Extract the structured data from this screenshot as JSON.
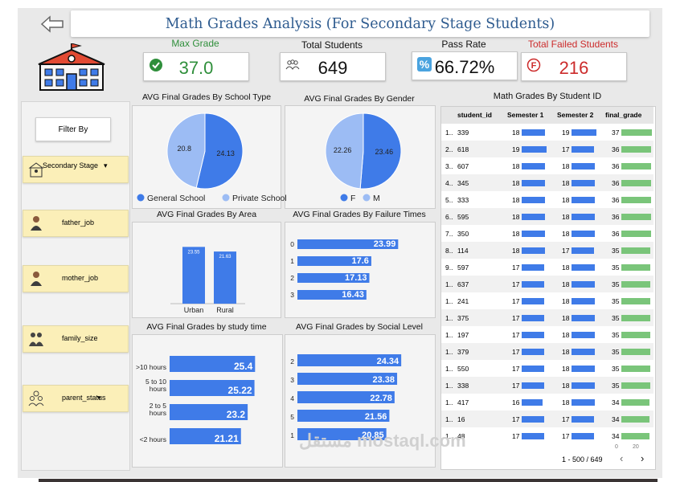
{
  "title": "Math Grades Analysis (For Secondary Stage Students)",
  "colors": {
    "accent": "#3f7be8",
    "light": "#9cbcf4",
    "green": "#2f8f3b",
    "red": "#cc2b2b",
    "filter": "#fbefb8",
    "bar_final": "#7ac57a"
  },
  "kpis": [
    {
      "label": "Max Grade",
      "value": "37.0",
      "icon": "check-circle-icon",
      "label_color": "#2f8f3b",
      "value_color": "#2f8f3b"
    },
    {
      "label": "Total Students",
      "value": "649",
      "icon": "people-group-icon",
      "label_color": "#111111",
      "value_color": "#111111"
    },
    {
      "label": "Pass Rate",
      "value": "66.72%",
      "icon": "percent-icon",
      "label_color": "#111111",
      "value_color": "#111111"
    },
    {
      "label": "Total Failed Students",
      "value": "216",
      "icon": "fail-circle-icon",
      "label_color": "#cc2b2b",
      "value_color": "#cc2b2b"
    }
  ],
  "sidebar": {
    "filter_label": "Filter By",
    "filters": [
      {
        "label": "Secondary Stage",
        "icon": "school-icon",
        "dropdown": "▾"
      },
      {
        "label": "father_job",
        "icon": "father-icon"
      },
      {
        "label": "mother_job",
        "icon": "mother-icon"
      },
      {
        "label": "family_size",
        "icon": "family-icon"
      },
      {
        "label": "parent_status",
        "icon": "parents-icon",
        "dropdown": "▾"
      }
    ]
  },
  "chart_data": [
    {
      "type": "pie",
      "title": "AVG Final Grades By School Type",
      "categories": [
        "General School",
        "Private School"
      ],
      "values": [
        24.13,
        20.8
      ]
    },
    {
      "type": "pie",
      "title": "AVG Final Grades By Gender",
      "categories": [
        "F",
        "M"
      ],
      "values": [
        23.46,
        22.26
      ]
    },
    {
      "type": "bar",
      "title": "AVG Final Grades By Area",
      "categories": [
        "Urban",
        "Rural"
      ],
      "values": [
        23.55,
        21.63
      ]
    },
    {
      "type": "bar",
      "orientation": "horizontal",
      "title": "AVG Final Grades By Failure Times",
      "categories": [
        "0",
        "1",
        "2",
        "3"
      ],
      "values": [
        23.99,
        17.6,
        17.13,
        16.43
      ]
    },
    {
      "type": "bar",
      "orientation": "horizontal",
      "title": "AVG Final Grades by study time",
      "categories": [
        ">10 hours",
        "5 to 10 hours",
        "2 to 5 hours",
        "<2 hours"
      ],
      "values": [
        25.4,
        25.22,
        23.2,
        21.21
      ]
    },
    {
      "type": "bar",
      "orientation": "horizontal",
      "title": "AVG Final Grades by Social Level",
      "categories": [
        "2",
        "3",
        "4",
        "5",
        "1"
      ],
      "values": [
        24.34,
        23.38,
        22.78,
        21.56,
        20.85
      ]
    }
  ],
  "table": {
    "title": "Math Grades By Student ID",
    "columns": [
      "student_id",
      "Semester 1",
      "Semester 2",
      "final_grade"
    ],
    "rows": [
      [
        "1..",
        "339",
        "18",
        "19",
        "37"
      ],
      [
        "2..",
        "618",
        "19",
        "17",
        "36"
      ],
      [
        "3..",
        "607",
        "18",
        "18",
        "36"
      ],
      [
        "4..",
        "345",
        "18",
        "18",
        "36"
      ],
      [
        "5..",
        "333",
        "18",
        "18",
        "36"
      ],
      [
        "6..",
        "595",
        "18",
        "18",
        "36"
      ],
      [
        "7..",
        "350",
        "18",
        "18",
        "36"
      ],
      [
        "8..",
        "114",
        "18",
        "17",
        "35"
      ],
      [
        "9..",
        "597",
        "17",
        "18",
        "35"
      ],
      [
        "1..",
        "637",
        "17",
        "18",
        "35"
      ],
      [
        "1..",
        "241",
        "17",
        "18",
        "35"
      ],
      [
        "1..",
        "375",
        "17",
        "18",
        "35"
      ],
      [
        "1..",
        "197",
        "17",
        "18",
        "35"
      ],
      [
        "1..",
        "379",
        "17",
        "18",
        "35"
      ],
      [
        "1..",
        "550",
        "17",
        "18",
        "35"
      ],
      [
        "1..",
        "338",
        "17",
        "18",
        "35"
      ],
      [
        "1..",
        "417",
        "16",
        "18",
        "34"
      ],
      [
        "1..",
        "16",
        "17",
        "17",
        "34"
      ],
      [
        "1..",
        "48",
        "17",
        "17",
        "34"
      ]
    ],
    "pagination": "1 - 500 / 649",
    "axis_ticks": [
      "0",
      "20"
    ]
  },
  "watermark": "مستقل mostaql.com"
}
